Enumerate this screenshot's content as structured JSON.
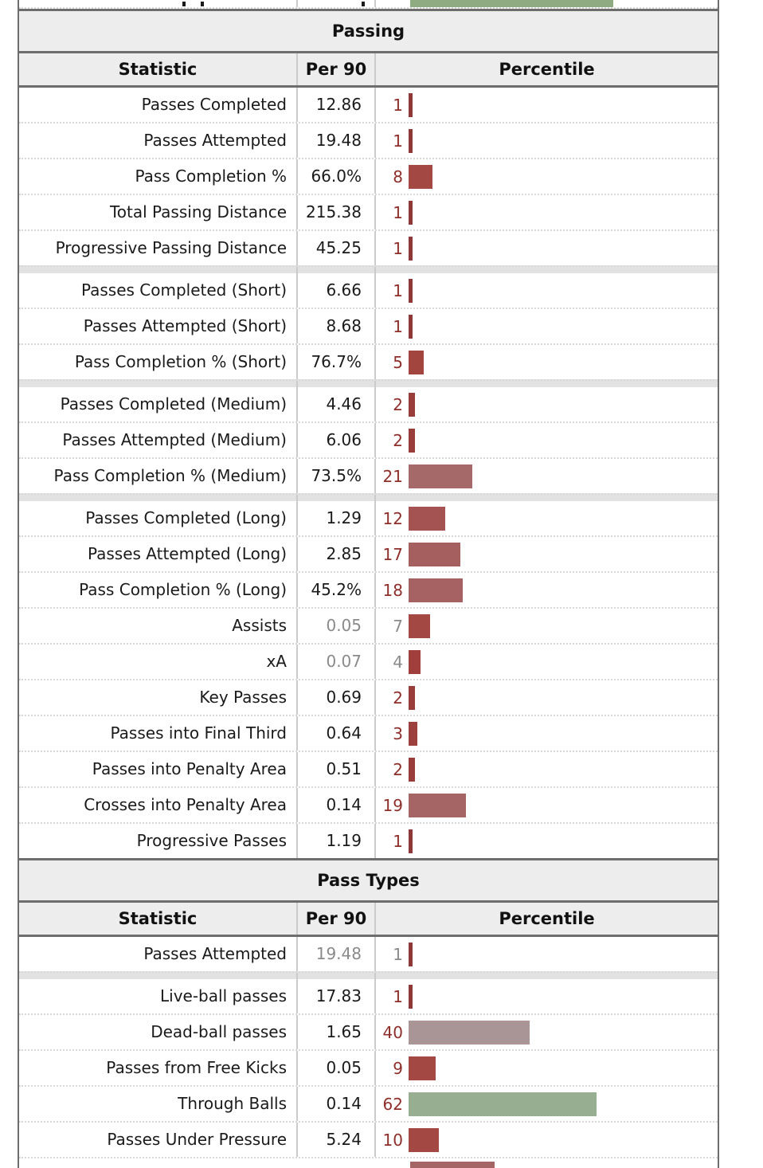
{
  "table": {
    "columns": [
      "Statistic",
      "Per 90",
      "Percentile"
    ],
    "colors": {
      "percentile_number": "#8e2f2b",
      "muted_text": "#8a8a8a",
      "header_background": "#ededed",
      "section_border": "#6d6d6d",
      "column_divider": "#cbcbcb",
      "row_dotted_line": "#d8d8d8",
      "group_spacer": "#e2e2e2"
    },
    "top_partial_row": {
      "pct": 67,
      "bar": "#8fab81"
    },
    "sections": [
      {
        "title": "Passing",
        "groups": [
          {
            "rows": [
              {
                "label": "Passes Completed",
                "per90": "12.86",
                "pct": 1,
                "bar": "#8e3838"
              },
              {
                "label": "Passes Attempted",
                "per90": "19.48",
                "pct": 1,
                "bar": "#8e3838"
              },
              {
                "label": "Pass Completion %",
                "per90": "66.0%",
                "pct": 8,
                "bar": "#a34843"
              },
              {
                "label": "Total Passing Distance",
                "per90": "215.38",
                "pct": 1,
                "bar": "#8e3838"
              },
              {
                "label": "Progressive Passing Distance",
                "per90": "45.25",
                "pct": 1,
                "bar": "#8e3838"
              }
            ]
          },
          {
            "rows": [
              {
                "label": "Passes Completed (Short)",
                "per90": "6.66",
                "pct": 1,
                "bar": "#8e3838"
              },
              {
                "label": "Passes Attempted (Short)",
                "per90": "8.68",
                "pct": 1,
                "bar": "#8e3838"
              },
              {
                "label": "Pass Completion % (Short)",
                "per90": "76.7%",
                "pct": 5,
                "bar": "#a3453f"
              }
            ]
          },
          {
            "rows": [
              {
                "label": "Passes Completed (Medium)",
                "per90": "4.46",
                "pct": 2,
                "bar": "#993d3b"
              },
              {
                "label": "Passes Attempted (Medium)",
                "per90": "6.06",
                "pct": 2,
                "bar": "#993d3b"
              },
              {
                "label": "Pass Completion % (Medium)",
                "per90": "73.5%",
                "pct": 21,
                "bar": "#a56969"
              }
            ]
          },
          {
            "rows": [
              {
                "label": "Passes Completed (Long)",
                "per90": "1.29",
                "pct": 12,
                "bar": "#a45252"
              },
              {
                "label": "Passes Attempted (Long)",
                "per90": "2.85",
                "pct": 17,
                "bar": "#a65f5f"
              },
              {
                "label": "Pass Completion % (Long)",
                "per90": "45.2%",
                "pct": 18,
                "bar": "#a66262"
              },
              {
                "label": "Assists",
                "per90": "0.05",
                "pct": 7,
                "bar": "#a34843",
                "muted": true
              },
              {
                "label": "xA",
                "per90": "0.07",
                "pct": 4,
                "bar": "#a03f3c",
                "muted": true
              },
              {
                "label": "Key Passes",
                "per90": "0.69",
                "pct": 2,
                "bar": "#993d3b"
              },
              {
                "label": "Passes into Final Third",
                "per90": "0.64",
                "pct": 3,
                "bar": "#9c403d"
              },
              {
                "label": "Passes into Penalty Area",
                "per90": "0.51",
                "pct": 2,
                "bar": "#993d3b"
              },
              {
                "label": "Crosses into Penalty Area",
                "per90": "0.14",
                "pct": 19,
                "bar": "#a66565"
              },
              {
                "label": "Progressive Passes",
                "per90": "1.19",
                "pct": 1,
                "bar": "#8e3838"
              }
            ]
          }
        ]
      },
      {
        "title": "Pass Types",
        "groups": [
          {
            "rows": [
              {
                "label": "Passes Attempted",
                "per90": "19.48",
                "pct": 1,
                "bar": "#8e3838",
                "muted": true
              }
            ]
          },
          {
            "rows": [
              {
                "label": "Live-ball passes",
                "per90": "17.83",
                "pct": 1,
                "bar": "#8e3838"
              },
              {
                "label": "Dead-ball passes",
                "per90": "1.65",
                "pct": 40,
                "bar": "#a99595"
              },
              {
                "label": "Passes from Free Kicks",
                "per90": "0.05",
                "pct": 9,
                "bar": "#a34843"
              },
              {
                "label": "Through Balls",
                "per90": "0.14",
                "pct": 62,
                "bar": "#98ae90"
              },
              {
                "label": "Passes Under Pressure",
                "per90": "5.24",
                "pct": 10,
                "bar": "#a34843"
              }
            ]
          }
        ]
      }
    ],
    "bottom_partial_row": {
      "pct": 28,
      "bar": "#a66565"
    }
  }
}
